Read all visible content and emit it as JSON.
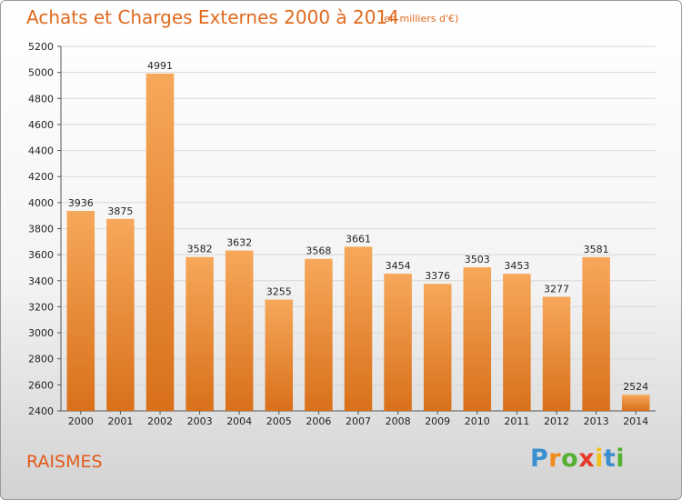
{
  "title": "Achats et Charges Externes 2000 à 2014",
  "subtitle": "(en milliers d'€)",
  "city": "RAISMES",
  "logo": {
    "letters": [
      "P",
      "r",
      "o",
      "x",
      "i",
      "t",
      "i"
    ],
    "colors": [
      "#3a8fd0",
      "#f08a1c",
      "#55b033",
      "#e63b2a",
      "#f2c21a",
      "#3a8fd0",
      "#55b033"
    ]
  },
  "colors": {
    "bar_top": "#f6a85a",
    "bar_bottom": "#d9701a",
    "title": "#e06a1e",
    "grid": "#d8d8d8"
  },
  "chart_data": {
    "type": "bar",
    "title": "Achats et Charges Externes 2000 à 2014",
    "subtitle": "(en milliers d'€)",
    "categories": [
      "2000",
      "2001",
      "2002",
      "2003",
      "2004",
      "2005",
      "2006",
      "2007",
      "2008",
      "2009",
      "2010",
      "2011",
      "2012",
      "2013",
      "2014"
    ],
    "values": [
      3936,
      3875,
      4991,
      3582,
      3632,
      3255,
      3568,
      3661,
      3454,
      3376,
      3503,
      3453,
      3277,
      3581,
      2524
    ],
    "ylim": [
      2400,
      5200
    ],
    "yticks": [
      2400,
      2600,
      2800,
      3000,
      3200,
      3400,
      3600,
      3800,
      4000,
      4200,
      4400,
      4600,
      4800,
      5000,
      5200
    ],
    "grid": true,
    "data_labels": true
  }
}
